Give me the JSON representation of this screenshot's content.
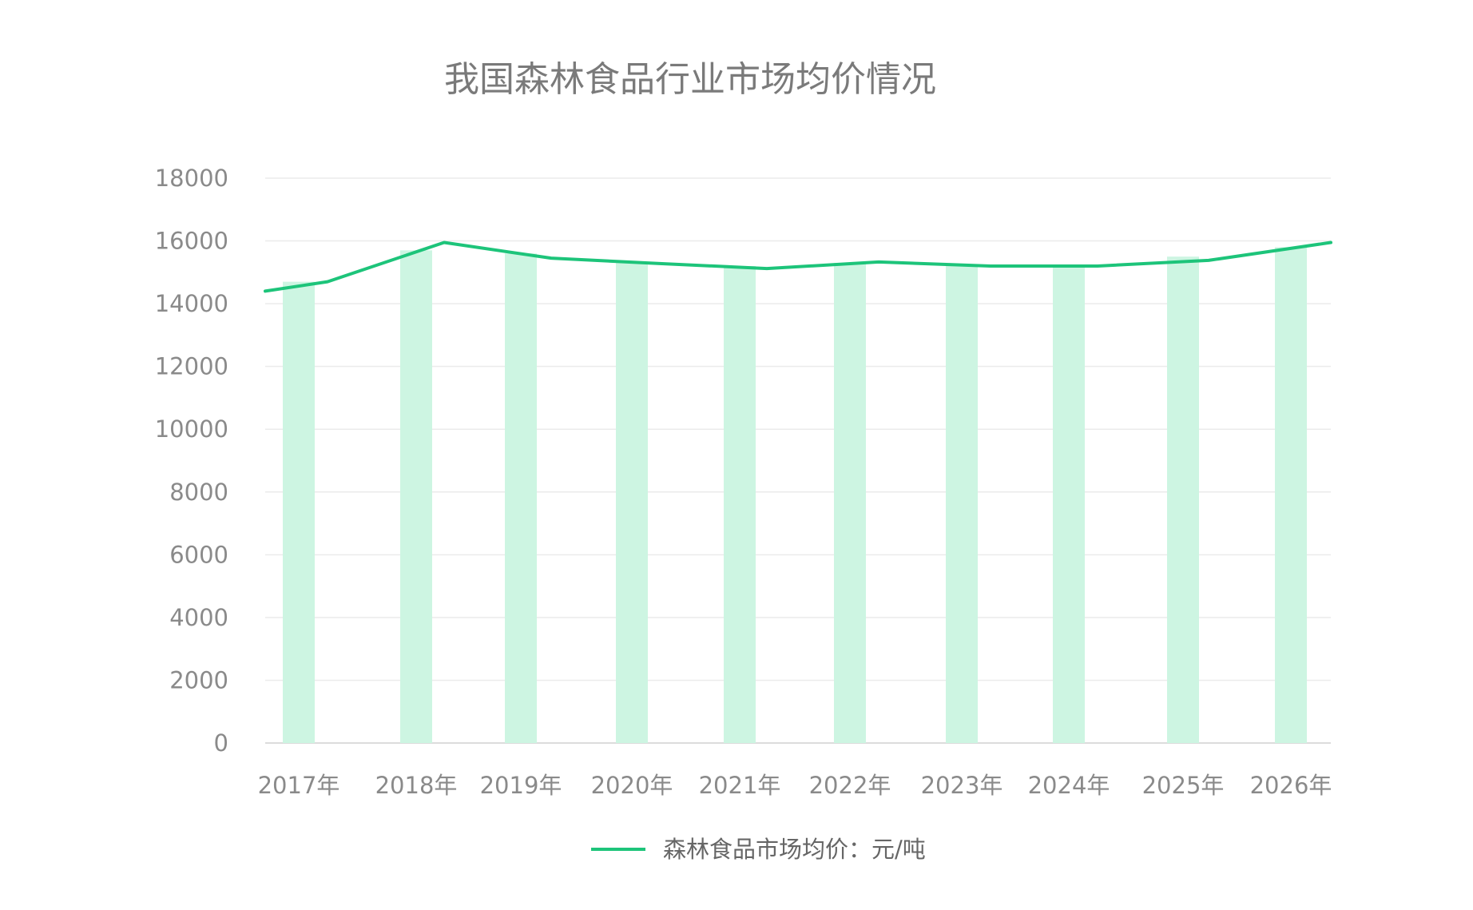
{
  "chart_data": {
    "type": "bar+line",
    "title": "我国森林食品行业市场均价情况",
    "categories": [
      "2017年",
      "2018年",
      "2019年",
      "2020年",
      "2021年",
      "2022年",
      "2023年",
      "2024年",
      "2025年",
      "2026年"
    ],
    "series": [
      {
        "type": "bar",
        "values": [
          14700,
          15700,
          15600,
          15300,
          15200,
          15300,
          15200,
          15200,
          15500,
          15800
        ]
      },
      {
        "type": "line",
        "name": "森林食品市场均价：元/吨",
        "values": [
          14700,
          15950,
          15450,
          15280,
          15120,
          15330,
          15200,
          15200,
          15380,
          15950
        ]
      }
    ],
    "line_start_value": 14400,
    "yticks": [
      "0",
      "2000",
      "4000",
      "6000",
      "8000",
      "10000",
      "12000",
      "14000",
      "16000",
      "18000"
    ],
    "ylim": [
      0,
      18000
    ],
    "grid": true,
    "legend_position": "bottom-center",
    "colors": {
      "line": "#1dc47a",
      "bar": "#cdf5e2",
      "grid": "#ebebeb",
      "axis": "#dcdcdc"
    }
  }
}
